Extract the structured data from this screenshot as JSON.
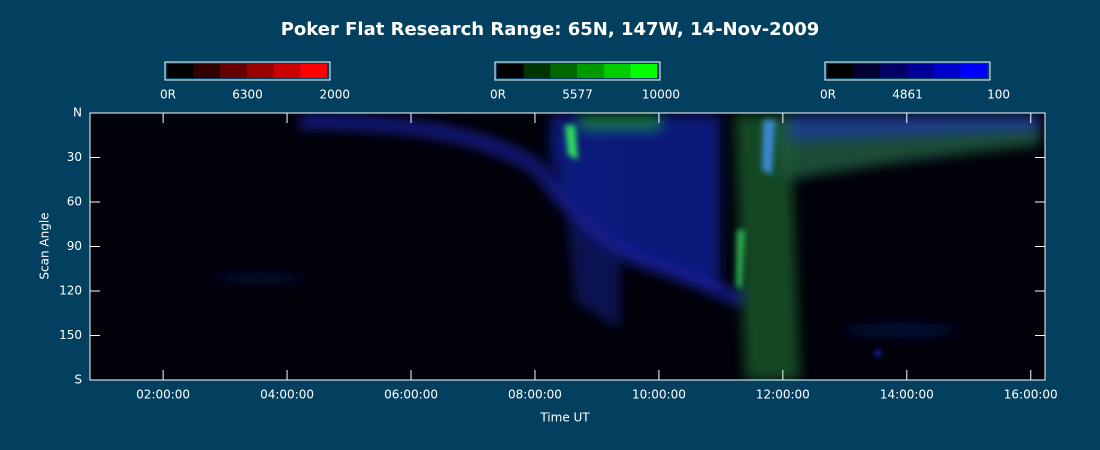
{
  "chart_data": {
    "type": "keogram",
    "title": "Poker Flat Research Range: 65N, 147W, 14-Nov-2009",
    "x_label": "Time UT",
    "y_label": "Scan Angle",
    "xlim": [
      0.82,
      16.23
    ],
    "xticks": [
      {
        "value": 2,
        "label": "02:00:00"
      },
      {
        "value": 4,
        "label": "04:00:00"
      },
      {
        "value": 6,
        "label": "06:00:00"
      },
      {
        "value": 8,
        "label": "08:00:00"
      },
      {
        "value": 10,
        "label": "10:00:00"
      },
      {
        "value": 12,
        "label": "12:00:00"
      },
      {
        "value": 14,
        "label": "14:00:00"
      },
      {
        "value": 16,
        "label": "16:00:00"
      }
    ],
    "ylim": [
      0,
      180
    ],
    "yticks": [
      {
        "value": 0,
        "label": "N"
      },
      30,
      60,
      90,
      120,
      150,
      {
        "value": 180,
        "label": "S"
      }
    ],
    "colorbars": [
      {
        "wavelength": "6300",
        "ticks": [
          {
            "value": 0,
            "label": "0R"
          },
          2000
        ],
        "colors": [
          "#000000",
          "#330000",
          "#660000",
          "#990000",
          "#cc0000",
          "#ff0000"
        ]
      },
      {
        "wavelength": "5577",
        "ticks": [
          {
            "value": 0,
            "label": "0R"
          },
          10000
        ],
        "colors": [
          "#000000",
          "#003300",
          "#006600",
          "#009900",
          "#00cc00",
          "#00ff00"
        ]
      },
      {
        "wavelength": "4861",
        "ticks": [
          {
            "value": 0,
            "label": "0R"
          },
          100
        ],
        "colors": [
          "#000000",
          "#000033",
          "#000066",
          "#000099",
          "#0000cc",
          "#0000ff"
        ]
      }
    ]
  }
}
